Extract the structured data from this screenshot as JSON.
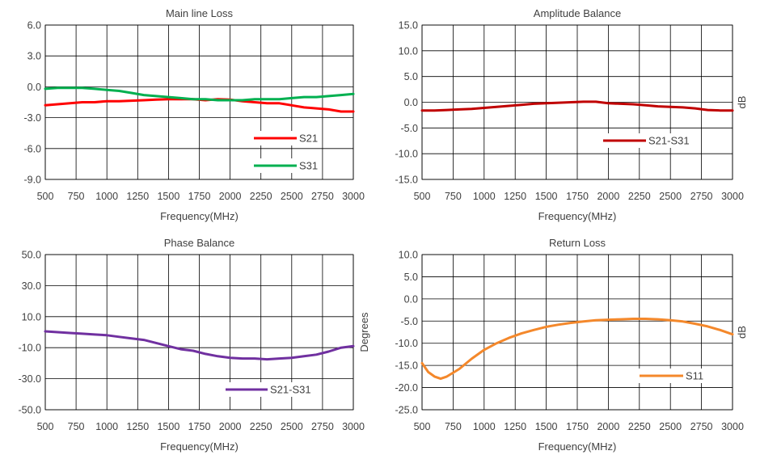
{
  "chart_data": [
    {
      "type": "line",
      "title": "Main line Loss",
      "xlabel": "Frequency(MHz)",
      "ylabel": "",
      "xlim": [
        500,
        3000
      ],
      "ylim": [
        -9.0,
        6.0
      ],
      "xticks": [
        500,
        750,
        1000,
        1250,
        1500,
        1750,
        2000,
        2250,
        2500,
        2750,
        3000
      ],
      "yticks": [
        "6.0",
        "3.0",
        "0.0",
        "-3.0",
        "-6.0",
        "-9.0"
      ],
      "grid": true,
      "legend": "lower-right",
      "series": [
        {
          "name": "S21",
          "color": "#ff0000",
          "x": [
            500,
            600,
            700,
            800,
            900,
            1000,
            1100,
            1200,
            1300,
            1400,
            1500,
            1600,
            1700,
            1800,
            1900,
            2000,
            2100,
            2200,
            2300,
            2400,
            2500,
            2600,
            2700,
            2800,
            2900,
            3000
          ],
          "y": [
            -1.8,
            -1.7,
            -1.6,
            -1.5,
            -1.5,
            -1.4,
            -1.4,
            -1.35,
            -1.3,
            -1.25,
            -1.2,
            -1.2,
            -1.2,
            -1.3,
            -1.2,
            -1.25,
            -1.4,
            -1.5,
            -1.6,
            -1.6,
            -1.8,
            -2.0,
            -2.1,
            -2.2,
            -2.4,
            -2.4
          ]
        },
        {
          "name": "S31",
          "color": "#00b050",
          "x": [
            500,
            600,
            700,
            800,
            900,
            1000,
            1100,
            1200,
            1300,
            1400,
            1500,
            1600,
            1700,
            1800,
            1900,
            2000,
            2100,
            2200,
            2300,
            2400,
            2500,
            2600,
            2700,
            2800,
            2900,
            3000
          ],
          "y": [
            -0.2,
            -0.1,
            -0.1,
            -0.1,
            -0.2,
            -0.3,
            -0.4,
            -0.6,
            -0.8,
            -0.9,
            -1.0,
            -1.1,
            -1.2,
            -1.2,
            -1.3,
            -1.3,
            -1.3,
            -1.2,
            -1.2,
            -1.2,
            -1.1,
            -1.0,
            -1.0,
            -0.9,
            -0.8,
            -0.7
          ]
        }
      ]
    },
    {
      "type": "line",
      "title": "Amplitude Balance",
      "xlabel": "Frequency(MHz)",
      "ylabel": "dB",
      "xlim": [
        500,
        3000
      ],
      "ylim": [
        -15.0,
        15.0
      ],
      "xticks": [
        500,
        750,
        1000,
        1250,
        1500,
        1750,
        2000,
        2250,
        2500,
        2750,
        3000
      ],
      "yticks": [
        "15.0",
        "10.0",
        "5.0",
        "0.0",
        "-5.0",
        "-10.0",
        "-15.0"
      ],
      "grid": true,
      "legend": "center-right",
      "series": [
        {
          "name": "S21-S31",
          "color": "#c00000",
          "x": [
            500,
            600,
            700,
            800,
            900,
            1000,
            1100,
            1200,
            1300,
            1400,
            1500,
            1600,
            1700,
            1800,
            1900,
            2000,
            2100,
            2200,
            2300,
            2400,
            2500,
            2600,
            2700,
            2800,
            2900,
            3000
          ],
          "y": [
            -1.6,
            -1.6,
            -1.5,
            -1.4,
            -1.3,
            -1.1,
            -0.9,
            -0.7,
            -0.5,
            -0.3,
            -0.2,
            -0.1,
            0.0,
            0.1,
            0.1,
            -0.2,
            -0.3,
            -0.4,
            -0.6,
            -0.8,
            -0.9,
            -1.0,
            -1.2,
            -1.5,
            -1.6,
            -1.6
          ]
        }
      ]
    },
    {
      "type": "line",
      "title": "Phase Balance",
      "xlabel": "Frequency(MHz)",
      "ylabel": "Degrees",
      "xlim": [
        500,
        3000
      ],
      "ylim": [
        -50.0,
        50.0
      ],
      "xticks": [
        500,
        750,
        1000,
        1250,
        1500,
        1750,
        2000,
        2250,
        2500,
        2750,
        3000
      ],
      "yticks": [
        "50.0",
        "30.0",
        "10.0",
        "-10.0",
        "-30.0",
        "-50.0"
      ],
      "grid": true,
      "legend": "lower-right",
      "series": [
        {
          "name": "S21-S31",
          "color": "#7030a0",
          "x": [
            500,
            600,
            700,
            800,
            900,
            1000,
            1100,
            1200,
            1300,
            1400,
            1500,
            1600,
            1700,
            1800,
            1900,
            2000,
            2100,
            2200,
            2300,
            2400,
            2500,
            2600,
            2700,
            2800,
            2900,
            3000
          ],
          "y": [
            0.5,
            0.0,
            -0.5,
            -1.0,
            -1.5,
            -2.0,
            -3.0,
            -4.0,
            -5.0,
            -7.0,
            -9.0,
            -11.0,
            -12.0,
            -14.0,
            -15.5,
            -16.5,
            -17.0,
            -17.0,
            -17.5,
            -17.0,
            -16.5,
            -15.5,
            -14.5,
            -12.5,
            -10.0,
            -9.0
          ]
        }
      ]
    },
    {
      "type": "line",
      "title": "Return Loss",
      "xlabel": "Frequency(MHz)",
      "ylabel": "dB",
      "xlim": [
        500,
        3000
      ],
      "ylim": [
        -25.0,
        10.0
      ],
      "xticks": [
        500,
        750,
        1000,
        1250,
        1500,
        1750,
        2000,
        2250,
        2500,
        2750,
        3000
      ],
      "yticks": [
        "10.0",
        "5.0",
        "0.0",
        "-5.0",
        "-10.0",
        "-15.0",
        "-20.0",
        "-25.0"
      ],
      "grid": true,
      "legend": "center-right",
      "series": [
        {
          "name": "S11",
          "color": "#f4882b",
          "x": [
            500,
            550,
            600,
            650,
            700,
            800,
            900,
            1000,
            1100,
            1200,
            1300,
            1400,
            1500,
            1600,
            1700,
            1800,
            1900,
            2000,
            2100,
            2200,
            2300,
            2400,
            2500,
            2600,
            2700,
            2800,
            2900,
            3000
          ],
          "y": [
            -14.5,
            -16.5,
            -17.5,
            -18.0,
            -17.5,
            -15.8,
            -13.5,
            -11.5,
            -10.0,
            -8.8,
            -7.8,
            -7.0,
            -6.3,
            -5.8,
            -5.4,
            -5.1,
            -4.8,
            -4.7,
            -4.6,
            -4.5,
            -4.5,
            -4.6,
            -4.8,
            -5.1,
            -5.6,
            -6.2,
            -7.0,
            -8.0
          ]
        }
      ]
    }
  ]
}
